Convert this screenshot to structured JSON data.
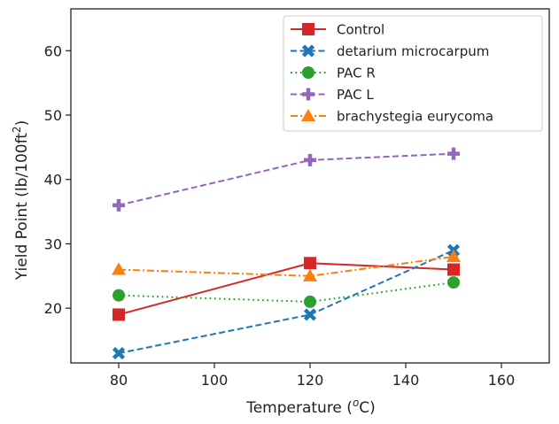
{
  "chart_data": {
    "type": "line",
    "title": "",
    "xlabel": {
      "prefix": "Temperature  (",
      "sup": "o",
      "suffix": "C)"
    },
    "ylabel": {
      "prefix": "Yield Point (lb/100ft",
      "sup": "2",
      "suffix": ")"
    },
    "xlim": [
      70,
      170
    ],
    "ylim": [
      11.5,
      66.5
    ],
    "xticks": [
      80,
      100,
      120,
      140,
      160
    ],
    "yticks": [
      20,
      30,
      40,
      50,
      60
    ],
    "grid": false,
    "legend_location": "upper right",
    "x": [
      80,
      120,
      150
    ],
    "series": [
      {
        "name": "Control",
        "values": [
          19,
          27,
          26
        ],
        "color": "#d62728",
        "dash": "solid",
        "marker": "square"
      },
      {
        "name": "detarium microcarpum",
        "values": [
          13,
          19,
          29
        ],
        "color": "#1f77b4",
        "dash": "dashed",
        "marker": "x"
      },
      {
        "name": "PAC R",
        "values": [
          22,
          21,
          24
        ],
        "color": "#2ca02c",
        "dash": "dotted",
        "marker": "circle"
      },
      {
        "name": "PAC L",
        "values": [
          36,
          43,
          44
        ],
        "color": "#9467bd",
        "dash": "dashed",
        "marker": "plus"
      },
      {
        "name": "brachystegia eurycoma",
        "values": [
          26,
          25,
          28
        ],
        "color": "#ff7f0e",
        "dash": "dashdot",
        "marker": "triangle"
      }
    ]
  }
}
